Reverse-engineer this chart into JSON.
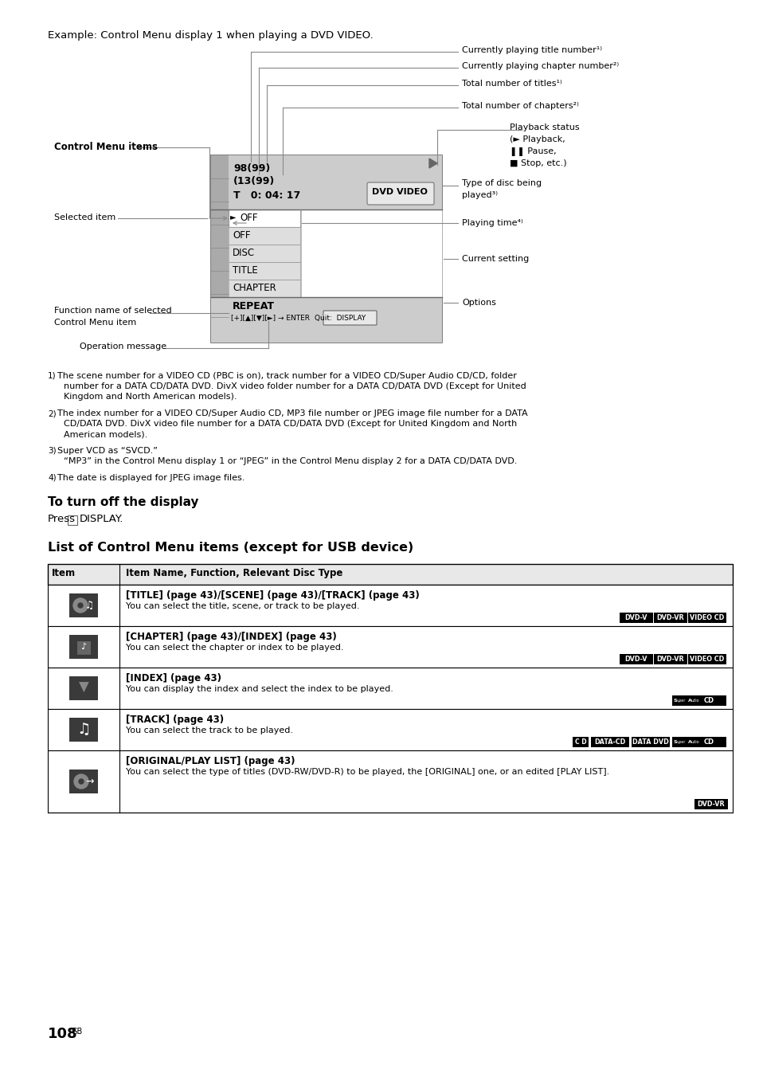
{
  "bg_color": "#ffffff",
  "page_number": "108",
  "top_example_text": "Example: Control Menu display 1 when playing a DVD VIDEO.",
  "section_turn_off_heading": "To turn off the display",
  "section_turn_off_text": "Press □ DISPLAY.",
  "section_list_heading": "List of Control Menu items (except for USB device)",
  "table_header_col1": "Item",
  "table_header_col2": "Item Name, Function, Relevant Disc Type",
  "table_rows": [
    {
      "icon_label": "disc_title",
      "title_bold": "[TITLE] (page 43)/[SCENE] (page 43)/[TRACK] (page 43)",
      "description": "You can select the title, scene, or track to be played.",
      "badges": [
        [
          "DVD-V",
          "dvd"
        ],
        [
          "DVD-VR",
          "dvd"
        ],
        [
          "VIDEO CD",
          "video"
        ]
      ]
    },
    {
      "icon_label": "chapter",
      "title_bold": "[CHAPTER] (page 43)/[INDEX] (page 43)",
      "description": "You can select the chapter or index to be played.",
      "badges": [
        [
          "DVD-V",
          "dvd"
        ],
        [
          "DVD-VR",
          "dvd"
        ],
        [
          "VIDEO CD",
          "video"
        ]
      ]
    },
    {
      "icon_label": "index",
      "title_bold": "[INDEX] (page 43)",
      "description": "You can display the index and select the index to be played.",
      "badges": [
        [
          "Super Audio CD",
          "super"
        ]
      ]
    },
    {
      "icon_label": "track",
      "title_bold": "[TRACK] (page 43)",
      "description": "You can select the track to be played.",
      "badges": [
        [
          "CD",
          "cd"
        ],
        [
          "DATA-CD",
          "data"
        ],
        [
          "DATA DVD",
          "data"
        ],
        [
          "Super Audio CD",
          "super"
        ]
      ]
    },
    {
      "icon_label": "original",
      "title_bold": "[ORIGINAL/PLAY LIST] (page 43)",
      "description": "You can select the type of titles (DVD-RW/DVD-R) to be played, the [ORIGINAL] one, or an edited [PLAY LIST].",
      "badges": [
        [
          "DVD-VR",
          "dvd"
        ]
      ]
    }
  ],
  "footnote1_super": "1)",
  "footnote1_body": "The scene number for a VIDEO CD (PBC is on), track number for a VIDEO CD/Super Audio CD/CD, folder number for a DATA CD/DATA DVD. DivX video folder number for a DATA CD/DATA DVD (Except for United Kingdom and North American models).",
  "footnote2_super": "2)",
  "footnote2_body": "The index number for a VIDEO CD/Super Audio CD, MP3 file number or JPEG image file number for a DATA CD/DATA DVD. DivX video file number for a DATA CD/DATA DVD (Except for United Kingdom and North American models).",
  "footnote3_super": "3)",
  "footnote3_line1": "Super VCD as “SVCD.”",
  "footnote3_line2": "“MP3” in the Control Menu display 1 or “JPEG” in the Control Menu display 2 for a DATA CD/DATA DVD.",
  "footnote4_super": "4)",
  "footnote4_body": "The date is displayed for JPEG image files."
}
